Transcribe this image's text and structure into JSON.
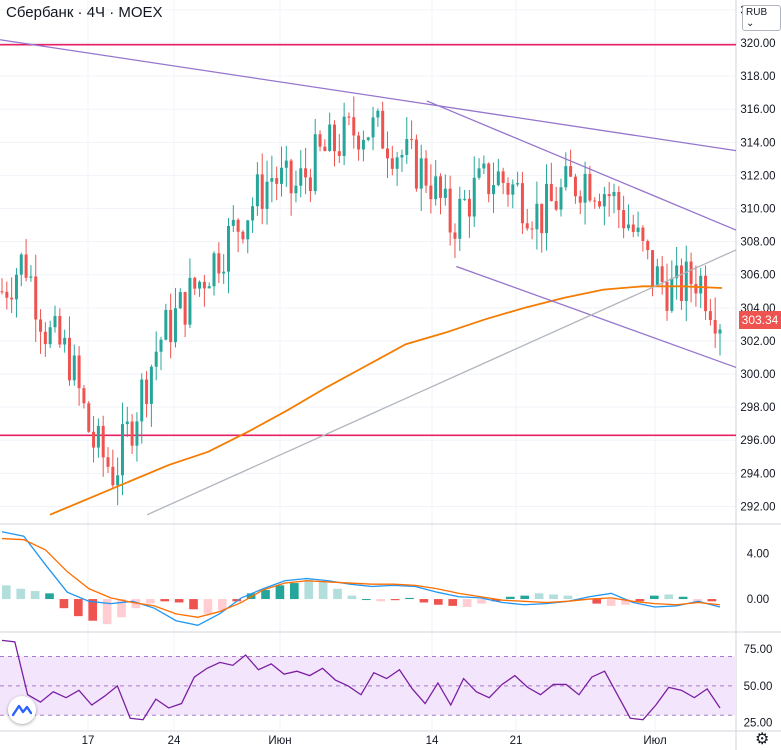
{
  "header": {
    "title": "Сбербанк · 4Ч · MOEX",
    "currency_button": "RUB",
    "currency_chevron": "⌄"
  },
  "chart_data": {
    "type": "candlestick",
    "price_axis": {
      "ticks": [
        "322.00",
        "320.00",
        "318.00",
        "316.00",
        "314.00",
        "312.00",
        "310.00",
        "308.00",
        "306.00",
        "304.00",
        "302.00",
        "300.00",
        "298.00",
        "296.00",
        "294.00",
        "292.00"
      ],
      "range": [
        291,
        322.6
      ]
    },
    "last_price": "303.34",
    "x_ticks": [
      "17",
      "24",
      "Июн",
      "14",
      "21",
      "Июл"
    ],
    "price_path": [
      305,
      307,
      302.5,
      301,
      296,
      294,
      298,
      302,
      304,
      306,
      308,
      310,
      312,
      311,
      313,
      314,
      315,
      314.5,
      313,
      312,
      309,
      311,
      312,
      311,
      309.5,
      311,
      312,
      311,
      309,
      306,
      305,
      306,
      303.5
    ],
    "ma_path": [
      291.5,
      292.5,
      293.5,
      294.5,
      295.3,
      296.5,
      297.8,
      299.2,
      300.5,
      301.8,
      302.5,
      303.3,
      304,
      304.6,
      305.1,
      305.3,
      305.3,
      305.2
    ],
    "horizontal_levels": [
      319.9,
      296.3
    ],
    "trend_lines": [
      {
        "color": "#9575cd",
        "from": [
          0,
          320.2
        ],
        "to": [
          1,
          313.5
        ]
      },
      {
        "color": "#9575cd",
        "from": [
          0.58,
          316.5
        ],
        "to": [
          1,
          308.7
        ]
      },
      {
        "color": "#9575cd",
        "from": [
          0.62,
          306.5
        ],
        "to": [
          1,
          300.4
        ]
      },
      {
        "color": "#b2b5be",
        "from": [
          0.2,
          291.5
        ],
        "to": [
          1,
          307.5
        ]
      }
    ],
    "macd": {
      "ticks": [
        "4.00",
        "0.00"
      ],
      "range": [
        -2.8,
        6.4
      ],
      "histogram": [
        1.2,
        0.9,
        0.7,
        0.5,
        -0.8,
        -1.5,
        -1.9,
        -2.2,
        -1.6,
        -0.8,
        -0.4,
        -0.2,
        -0.3,
        -0.9,
        -1.3,
        -1.0,
        -0.2,
        0.5,
        0.8,
        1.2,
        1.4,
        1.7,
        1.5,
        0.9,
        0.3,
        0,
        -0.2,
        -0.1,
        0.1,
        -0.3,
        -0.5,
        -0.6,
        -0.7,
        -0.4,
        -0.2,
        0.2,
        0.3,
        0.5,
        0.4,
        0.3,
        0,
        -0.4,
        -0.6,
        -0.5,
        -0.2,
        0.3,
        0.4,
        0.2,
        -0.3,
        -0.2
      ],
      "macd_line": [
        5.9,
        5.5,
        3,
        0.6,
        -0.2,
        -0.4,
        -0.2,
        -0.8,
        -1.9,
        -2.3,
        -1.3,
        0.1,
        0.9,
        1.6,
        1.8,
        1.6,
        1.3,
        1.1,
        1.2,
        1.1,
        0.6,
        0.2,
        0.1,
        -0.3,
        -0.5,
        -0.4,
        -0.2,
        0.2,
        0.5,
        -0.3,
        -0.7,
        -0.6,
        -0.2,
        -0.7
      ],
      "signal_line": [
        5.3,
        5.2,
        4.3,
        2.4,
        0.9,
        0.1,
        -0.3,
        -0.6,
        -1.3,
        -1.6,
        -1.1,
        -0.3,
        0.8,
        1.4,
        1.6,
        1.5,
        1.4,
        1.3,
        1.3,
        1.2,
        0.9,
        0.5,
        0.2,
        -0.1,
        -0.2,
        -0.3,
        -0.2,
        0,
        0.1,
        -0.2,
        -0.4,
        -0.5,
        -0.3,
        -0.5
      ]
    },
    "rsi": {
      "ticks": [
        "75.00",
        "50.00",
        "25.00"
      ],
      "range": [
        20,
        86
      ],
      "band": [
        30,
        70
      ],
      "midline": 50,
      "values": [
        81,
        80,
        44,
        39,
        46,
        42,
        47,
        37,
        43,
        50,
        28,
        27,
        41,
        35,
        38,
        56,
        62,
        66,
        64,
        71,
        61,
        65,
        58,
        60,
        57,
        62,
        54,
        50,
        44,
        59,
        55,
        61,
        48,
        38,
        52,
        37,
        55,
        46,
        42,
        51,
        57,
        49,
        44,
        51,
        51,
        44,
        56,
        60,
        44,
        28,
        27,
        37,
        49,
        47,
        42,
        48,
        35
      ]
    },
    "colors": {
      "up": "#26a69a",
      "down": "#ef5350",
      "ma": "#f57c00",
      "level": "#e91e63",
      "trend": "#9575cd",
      "grey_trend": "#b2b5be",
      "macd_line": "#2196f3",
      "signal_line": "#ff6d00",
      "rsi_line": "#7b1fa2",
      "rsi_band": "#f3e5fb"
    }
  }
}
